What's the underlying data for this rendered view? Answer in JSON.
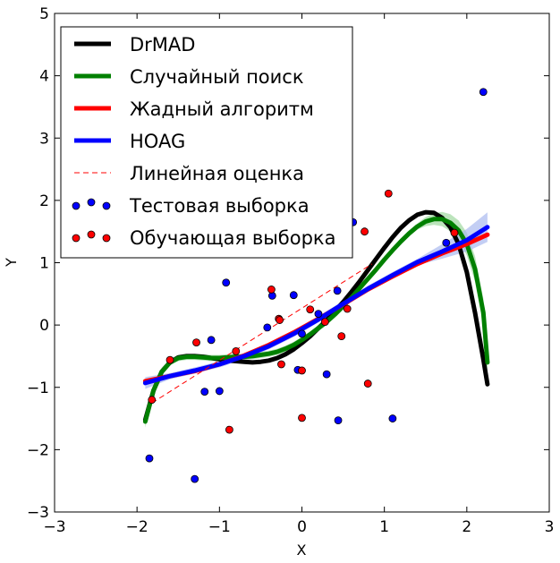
{
  "chart_data": {
    "type": "scatter",
    "title": "",
    "xlabel": "X",
    "ylabel": "Y",
    "xlim": [
      -3,
      3
    ],
    "ylim": [
      -3,
      5
    ],
    "xticks": [
      "−3",
      "−2",
      "−1",
      "0",
      "1",
      "2",
      "3"
    ],
    "yticks": [
      "−3",
      "−2",
      "−1",
      "0",
      "1",
      "2",
      "3",
      "4",
      "5"
    ],
    "legend_position": "top-left",
    "series": [
      {
        "name": "DrMAD",
        "kind": "line",
        "color": "#000000",
        "x": [
          -1.9,
          -1.8,
          -1.7,
          -1.6,
          -1.5,
          -1.4,
          -1.3,
          -1.2,
          -1.1,
          -1.0,
          -0.9,
          -0.8,
          -0.7,
          -0.6,
          -0.5,
          -0.4,
          -0.3,
          -0.2,
          -0.1,
          0.0,
          0.1,
          0.2,
          0.3,
          0.4,
          0.5,
          0.6,
          0.7,
          0.8,
          0.9,
          1.0,
          1.1,
          1.2,
          1.3,
          1.4,
          1.5,
          1.6,
          1.7,
          1.8,
          1.9,
          2.0,
          2.1,
          2.2,
          2.25
        ],
        "y": [
          -1.52,
          -1.05,
          -0.75,
          -0.6,
          -0.52,
          -0.5,
          -0.5,
          -0.51,
          -0.53,
          -0.55,
          -0.57,
          -0.58,
          -0.59,
          -0.6,
          -0.59,
          -0.57,
          -0.53,
          -0.47,
          -0.39,
          -0.29,
          -0.18,
          -0.05,
          0.08,
          0.22,
          0.37,
          0.53,
          0.7,
          0.88,
          1.06,
          1.24,
          1.41,
          1.56,
          1.68,
          1.77,
          1.81,
          1.8,
          1.72,
          1.57,
          1.3,
          0.85,
          0.2,
          -0.55,
          -0.95
        ]
      },
      {
        "name": "Случайный поиск",
        "kind": "line",
        "color": "#008000",
        "band_color": "#9fd89f",
        "x": [
          -1.9,
          -1.8,
          -1.7,
          -1.6,
          -1.5,
          -1.4,
          -1.3,
          -1.2,
          -1.1,
          -1.0,
          -0.9,
          -0.8,
          -0.7,
          -0.6,
          -0.5,
          -0.4,
          -0.3,
          -0.2,
          -0.1,
          0.0,
          0.1,
          0.2,
          0.3,
          0.4,
          0.5,
          0.6,
          0.7,
          0.8,
          0.9,
          1.0,
          1.1,
          1.2,
          1.3,
          1.4,
          1.5,
          1.6,
          1.7,
          1.8,
          1.9,
          2.0,
          2.1,
          2.2,
          2.25
        ],
        "y": [
          -1.55,
          -1.05,
          -0.75,
          -0.6,
          -0.53,
          -0.51,
          -0.51,
          -0.52,
          -0.53,
          -0.53,
          -0.52,
          -0.51,
          -0.51,
          -0.5,
          -0.48,
          -0.46,
          -0.43,
          -0.38,
          -0.32,
          -0.24,
          -0.15,
          -0.05,
          0.05,
          0.17,
          0.3,
          0.44,
          0.59,
          0.74,
          0.89,
          1.05,
          1.2,
          1.34,
          1.47,
          1.58,
          1.66,
          1.7,
          1.7,
          1.64,
          1.52,
          1.3,
          0.9,
          0.2,
          -0.6
        ]
      },
      {
        "name": "Жадный алгоритм",
        "kind": "line",
        "color": "#ff0000",
        "x": [
          -1.9,
          -1.6,
          -1.3,
          -1.0,
          -0.7,
          -0.4,
          -0.1,
          0.2,
          0.5,
          0.8,
          1.1,
          1.4,
          1.7,
          2.0,
          2.25
        ],
        "y": [
          -0.9,
          -0.82,
          -0.74,
          -0.63,
          -0.49,
          -0.32,
          -0.12,
          0.1,
          0.33,
          0.57,
          0.78,
          0.98,
          1.15,
          1.3,
          1.45
        ]
      },
      {
        "name": "HOAG",
        "kind": "line",
        "color": "#0000ff",
        "band_color": "#a9b9f0",
        "x": [
          -1.9,
          -1.6,
          -1.3,
          -1.0,
          -0.7,
          -0.4,
          -0.1,
          0.2,
          0.5,
          0.8,
          1.1,
          1.4,
          1.7,
          2.0,
          2.25
        ],
        "y": [
          -0.93,
          -0.82,
          -0.73,
          -0.63,
          -0.5,
          -0.34,
          -0.14,
          0.09,
          0.34,
          0.58,
          0.8,
          1.01,
          1.18,
          1.36,
          1.57
        ]
      },
      {
        "name": "Линейная оценка",
        "kind": "dashed",
        "color": "#ff0000",
        "x": [
          -1.82,
          0.85
        ],
        "y": [
          -1.25,
          0.98
        ]
      },
      {
        "name": "Тестовая выборка",
        "kind": "points",
        "color": "#0000ff",
        "x": [
          -1.85,
          -1.3,
          -1.18,
          -1.1,
          -1.0,
          -0.92,
          -0.42,
          -0.36,
          -0.1,
          -0.05,
          0.0,
          0.2,
          0.3,
          0.43,
          0.44,
          0.62,
          1.1,
          1.75,
          2.2
        ],
        "y": [
          -2.14,
          -2.47,
          -1.07,
          -0.24,
          -1.06,
          0.68,
          -0.04,
          0.47,
          0.48,
          -0.72,
          -0.14,
          0.18,
          -0.79,
          0.55,
          -1.53,
          1.65,
          -1.5,
          1.32,
          3.74
        ]
      },
      {
        "name": "Обучающая выборка",
        "kind": "points",
        "color": "#ff0000",
        "x": [
          -1.82,
          -1.6,
          -1.28,
          -0.88,
          -0.8,
          -0.37,
          -0.28,
          -0.27,
          -0.25,
          0.0,
          0.0,
          0.1,
          0.28,
          0.48,
          0.55,
          0.76,
          0.8,
          1.05,
          1.85
        ],
        "y": [
          -1.2,
          -0.56,
          -0.28,
          -1.68,
          -0.42,
          0.57,
          0.1,
          0.08,
          -0.63,
          -0.73,
          -1.49,
          0.25,
          0.05,
          -0.18,
          0.26,
          1.5,
          -0.94,
          2.11,
          1.48
        ]
      }
    ]
  }
}
